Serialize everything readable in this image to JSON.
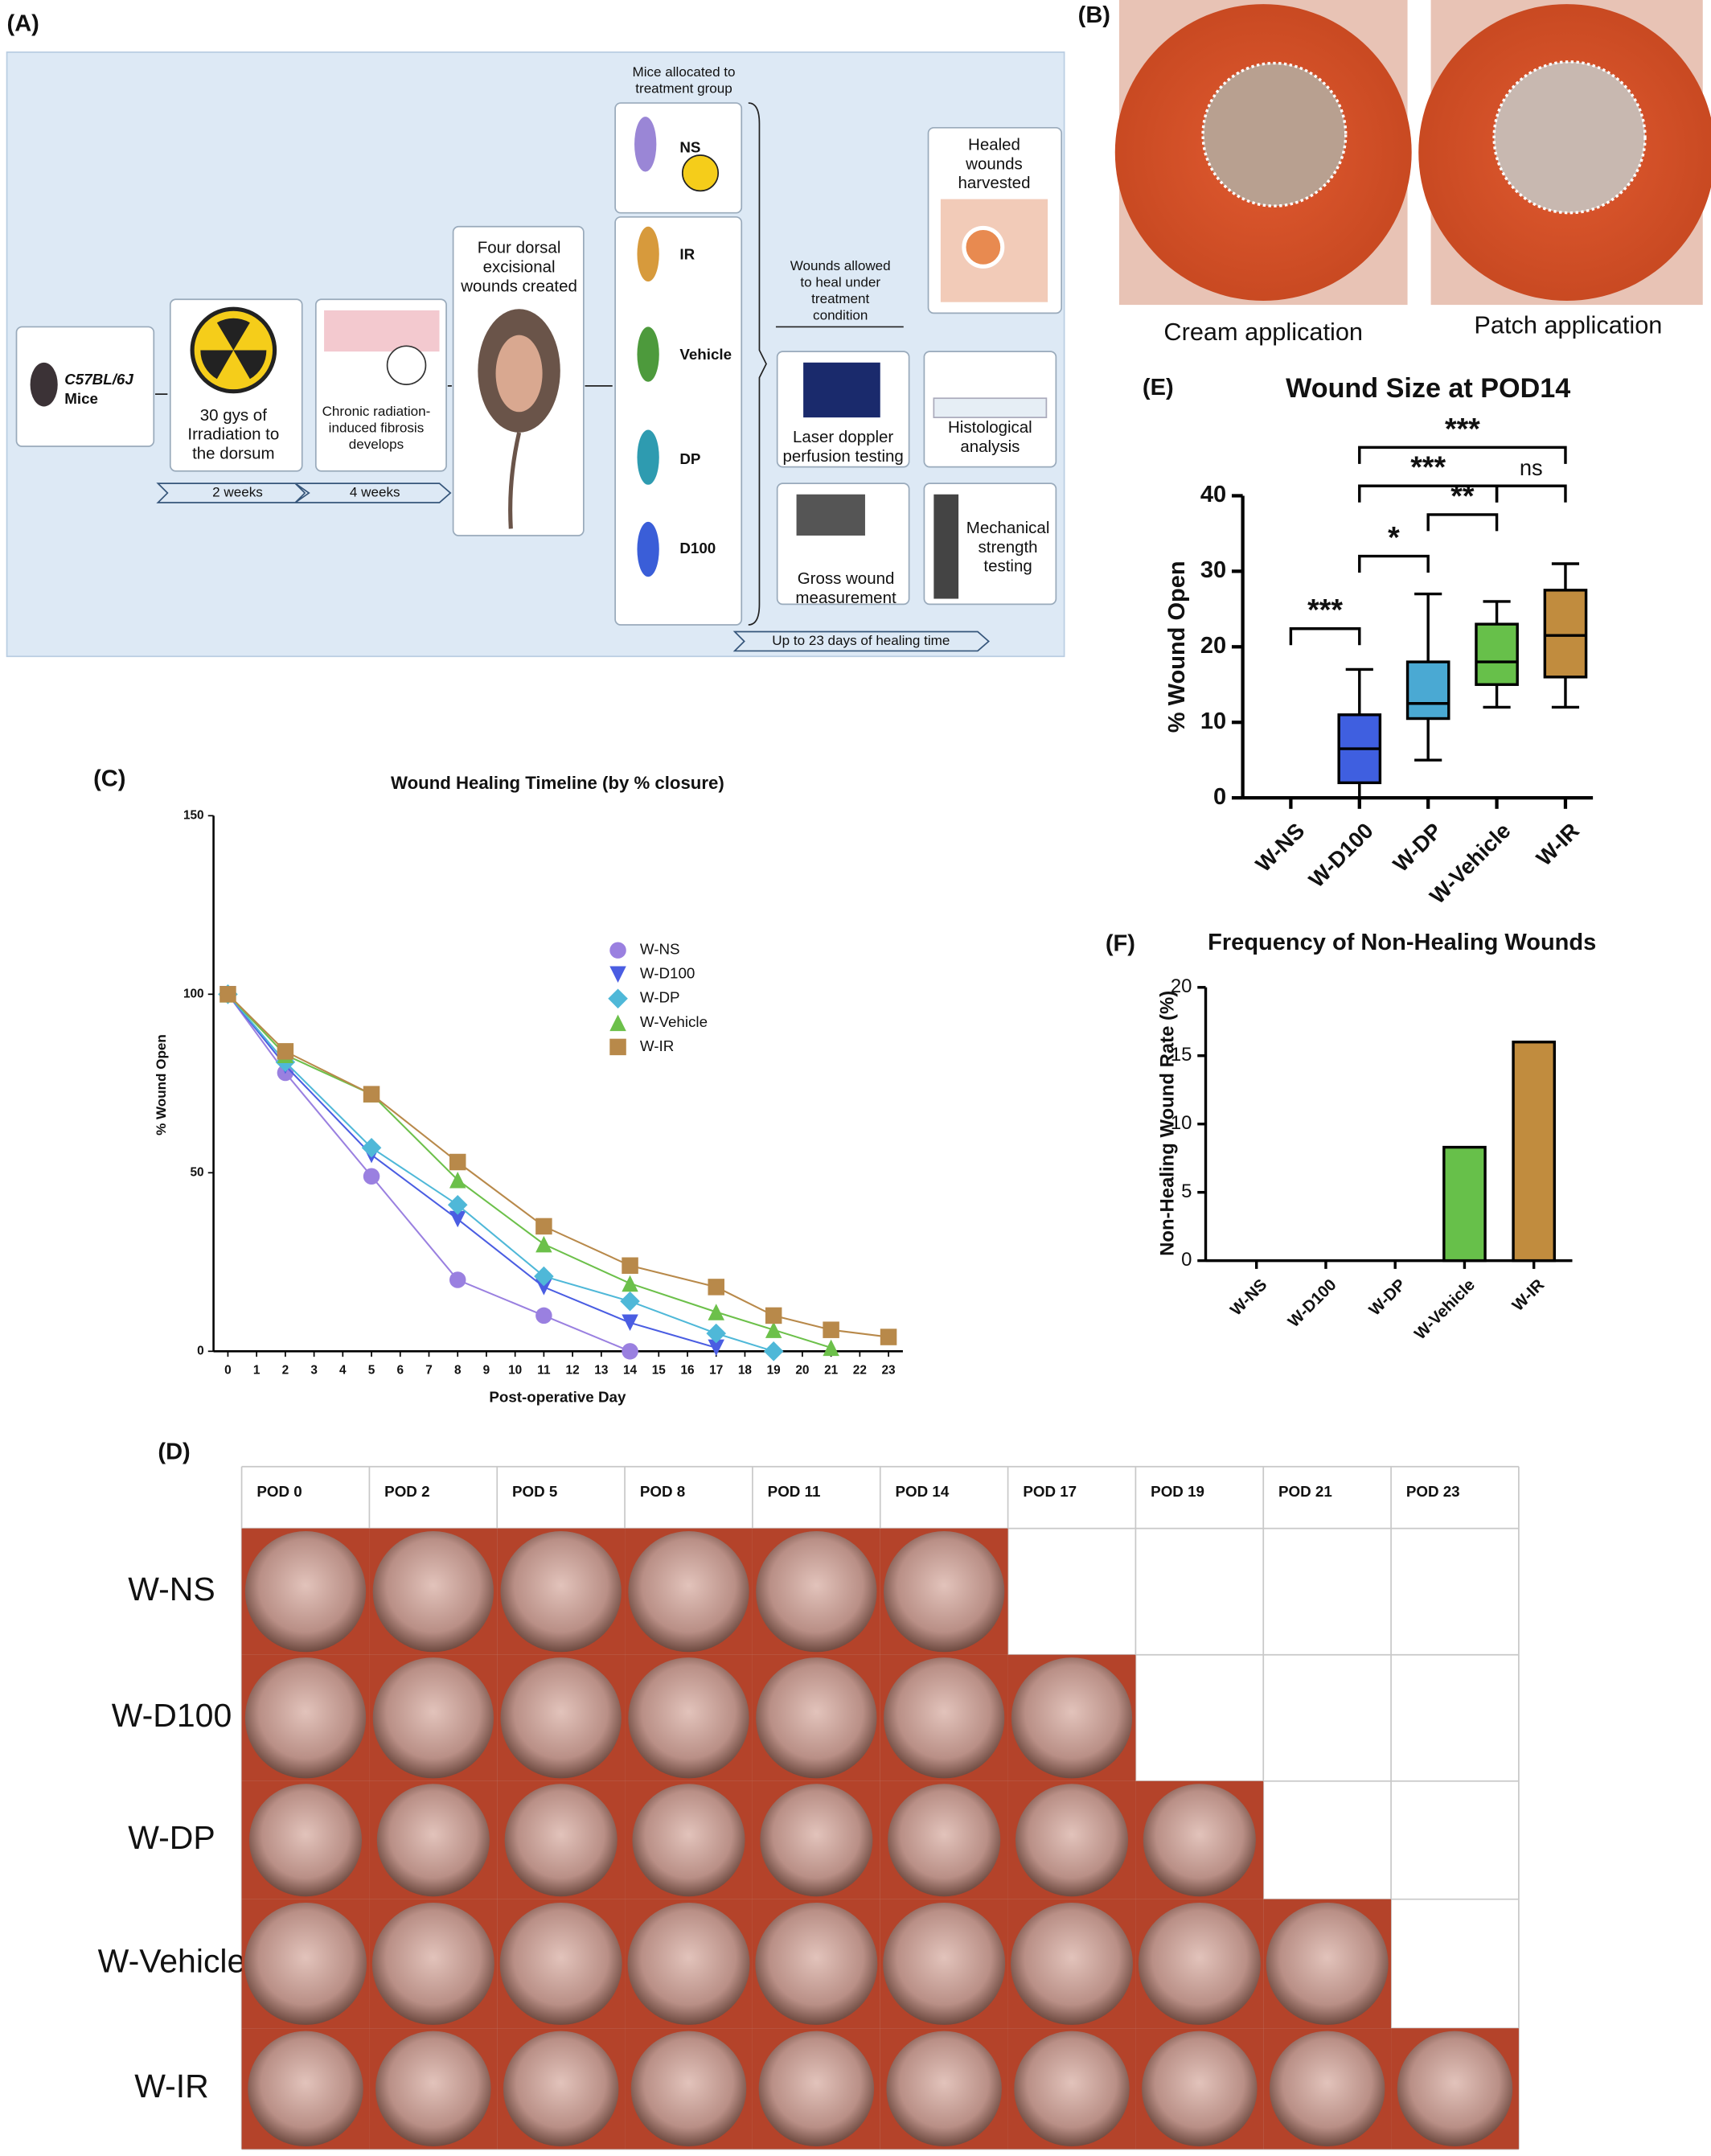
{
  "panel_labels": [
    "(A)",
    "(B)",
    "(C)",
    "(D)",
    "(E)",
    "(F)"
  ],
  "diagram": {
    "texts": [
      "Mice allocated to",
      "treatment group",
      "C57BL/6J",
      "Mice",
      "30 gys of",
      "Irradiation to",
      "the dorsum",
      "Chronic radiation-",
      "induced fibrosis",
      "develops",
      "2 weeks",
      "4 weeks",
      "Four dorsal",
      "excisional",
      "wounds created",
      "NS",
      "IR",
      "Vehicle",
      "DP",
      "D100",
      "Wounds allowed",
      "to heal under",
      "treatment",
      "condition",
      "Healed",
      "wounds",
      "harvested",
      "Laser doppler",
      "perfusion testing",
      "Histological",
      "analysis",
      "Gross wound",
      "measurement",
      "Mechanical",
      "strength",
      "testing",
      "Up to 23 days of healing time"
    ]
  },
  "photos": {
    "captions": [
      "Cream application",
      "Patch application"
    ]
  },
  "table": {
    "columns": [
      "POD 0",
      "POD 2",
      "POD 5",
      "POD 8",
      "POD 11",
      "POD 14",
      "POD 17",
      "POD 19",
      "POD 21",
      "POD 23"
    ],
    "rows": [
      "W-NS",
      "W-D100",
      "W-DP",
      "W-Vehicle",
      "W-IR"
    ]
  },
  "chart_data": [
    {
      "type": "line",
      "title": "Wound Healing Timeline (by % closure)",
      "x_label": "Post-operative Day",
      "y_label": "% Wound Open",
      "x": [
        0,
        2,
        5,
        8,
        11,
        14,
        17,
        19,
        21,
        23
      ],
      "series": [
        {
          "name": "W-NS",
          "color": "#9a80e0",
          "marker": "circle",
          "values": [
            100,
            78,
            49,
            20,
            10,
            0,
            null,
            null,
            null,
            null
          ]
        },
        {
          "name": "W-D100",
          "color": "#4a5de2",
          "marker": "triangle-down",
          "values": [
            100,
            80,
            55,
            37,
            18,
            8,
            1,
            null,
            null,
            null
          ]
        },
        {
          "name": "W-DP",
          "color": "#4fb8d8",
          "marker": "diamond",
          "values": [
            100,
            81,
            57,
            41,
            21,
            14,
            5,
            0,
            null,
            null
          ]
        },
        {
          "name": "W-Vehicle",
          "color": "#6cc04a",
          "marker": "triangle-up",
          "values": [
            100,
            83,
            72,
            48,
            30,
            19,
            11,
            6,
            1,
            null
          ]
        },
        {
          "name": "W-IR",
          "color": "#b8894a",
          "marker": "square",
          "values": [
            100,
            84,
            72,
            53,
            35,
            24,
            18,
            10,
            6,
            4
          ]
        }
      ],
      "xlim": [
        -0.5,
        23.5
      ],
      "xticks": [
        0,
        1,
        2,
        3,
        4,
        5,
        6,
        7,
        8,
        9,
        10,
        11,
        12,
        13,
        14,
        15,
        16,
        17,
        18,
        19,
        20,
        21,
        22,
        23
      ],
      "ylim": [
        0,
        150
      ],
      "yticks": [
        0,
        50,
        100,
        150
      ],
      "grid": false,
      "legend": "upper right"
    },
    {
      "type": "box",
      "title": "Wound Size at POD14",
      "y_label": "% Wound Open",
      "categories": [
        "W-NS",
        "W-D100",
        "W-DP",
        "W-Vehicle",
        "W-IR"
      ],
      "min": [
        0,
        0,
        5,
        12,
        12
      ],
      "q1": [
        0,
        2,
        10.5,
        15,
        16
      ],
      "median": [
        0,
        6.5,
        12.5,
        18,
        21.5
      ],
      "q3": [
        0,
        11,
        18,
        23,
        27.5
      ],
      "max": [
        0,
        17,
        27,
        26,
        31
      ],
      "colors": [
        "#000000",
        "#3f5fe0",
        "#4aa9d3",
        "#67c04a",
        "#c18c3e"
      ],
      "ylim": [
        0,
        40
      ],
      "yticks": [
        0,
        10,
        20,
        30,
        40
      ],
      "grid": false,
      "annotations": [
        {
          "label": "***",
          "from": "W-NS",
          "to": "W-D100",
          "y": 22.4
        },
        {
          "label": "*",
          "from": "W-D100",
          "to": "W-DP",
          "y": 32
        },
        {
          "label": "**",
          "from": "W-DP",
          "to": "W-Vehicle",
          "y": 37.5
        },
        {
          "label": "***",
          "from": "W-D100",
          "to": "W-Vehicle",
          "y": 41.3
        },
        {
          "label": "ns",
          "from": "W-Vehicle",
          "to": "W-IR",
          "y": 41.3
        },
        {
          "label": "***",
          "from": "W-D100",
          "to": "W-IR",
          "y": 46.4
        }
      ]
    },
    {
      "type": "bar",
      "title": "Frequency of Non-Healing Wounds",
      "y_label": "Non-Healing Wound Rate (%)",
      "categories": [
        "W-NS",
        "W-D100",
        "W-DP",
        "W-Vehicle",
        "W-IR"
      ],
      "values": [
        0,
        0,
        0,
        8.3,
        16
      ],
      "colors": [
        "#000000",
        "#3f5fe0",
        "#4aa9d3",
        "#67c04a",
        "#c18c3e"
      ],
      "ylim": [
        0,
        20
      ],
      "yticks": [
        0,
        5,
        10,
        15,
        20
      ],
      "grid": false
    }
  ]
}
